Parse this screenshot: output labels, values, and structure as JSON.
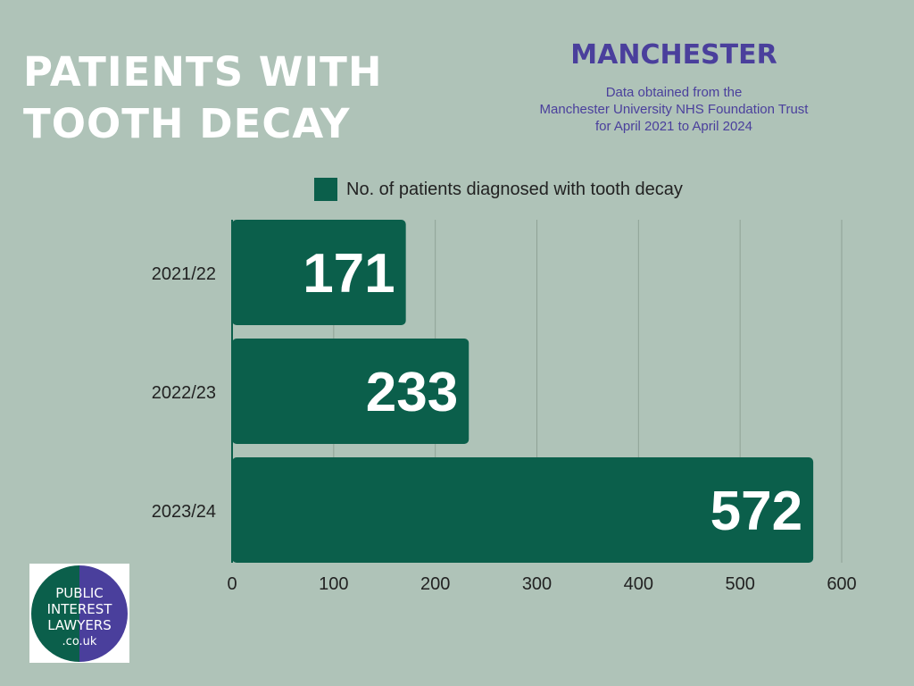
{
  "header": {
    "title_line1": "PATIENTS WITH",
    "title_line2": "TOOTH DECAY",
    "city": "MANCHESTER",
    "source_line1": "Data obtained from the",
    "source_line2": "Manchester University NHS Foundation Trust",
    "source_line3": "for April 2021 to April 2024"
  },
  "colors": {
    "background": "#afc3b8",
    "bar": "#0b5f4b",
    "title": "#ffffff",
    "accent": "#4a3f9c",
    "logo_green": "#0b5f4b",
    "logo_purple": "#4a3f9c"
  },
  "chart_data": {
    "type": "bar",
    "orientation": "horizontal",
    "categories": [
      "2021/22",
      "2022/23",
      "2023/24"
    ],
    "series": [
      {
        "name": "No. of patients diagnosed with tooth decay",
        "values": [
          171,
          233,
          572
        ]
      }
    ],
    "xlim": [
      0,
      600
    ],
    "xticks": [
      0,
      100,
      200,
      300,
      400,
      500,
      600
    ],
    "grid": true,
    "legend_placement": "top",
    "data_labels": [
      "171",
      "233",
      "572"
    ]
  },
  "logo": {
    "line1": "PUBLIC",
    "line2": "INTEREST",
    "line3": "LAWYERS",
    "line4": ".co.uk"
  }
}
